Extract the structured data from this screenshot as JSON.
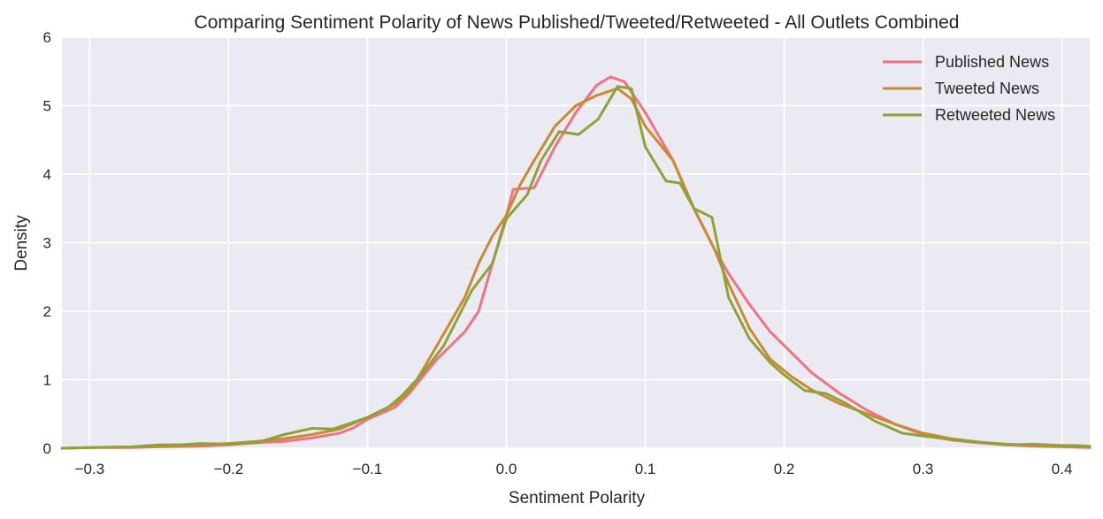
{
  "chart_data": {
    "type": "line",
    "title": "Comparing Sentiment Polarity of News Published/Tweeted/Retweeted - All Outlets Combined",
    "xlabel": "Sentiment Polarity",
    "ylabel": "Density",
    "xlim": [
      -0.32,
      0.42
    ],
    "ylim": [
      0,
      6
    ],
    "xticks": [
      -0.3,
      -0.2,
      -0.1,
      0.0,
      0.1,
      0.2,
      0.3,
      0.4
    ],
    "xtick_labels": [
      "−0.3",
      "−0.2",
      "−0.1",
      "0.0",
      "0.1",
      "0.2",
      "0.3",
      "0.4"
    ],
    "yticks": [
      0,
      1,
      2,
      3,
      4,
      5,
      6
    ],
    "ytick_labels": [
      "0",
      "1",
      "2",
      "3",
      "4",
      "5",
      "6"
    ],
    "grid": true,
    "legend_position": "top-right",
    "series": [
      {
        "name": "Published News",
        "color": "#f07283",
        "x": [
          -0.32,
          -0.3,
          -0.27,
          -0.25,
          -0.22,
          -0.2,
          -0.18,
          -0.16,
          -0.14,
          -0.12,
          -0.11,
          -0.1,
          -0.08,
          -0.07,
          -0.06,
          -0.05,
          -0.04,
          -0.03,
          -0.02,
          -0.01,
          0.0,
          0.005,
          0.02,
          0.035,
          0.05,
          0.065,
          0.075,
          0.085,
          0.1,
          0.12,
          0.135,
          0.15,
          0.16,
          0.175,
          0.19,
          0.205,
          0.22,
          0.24,
          0.26,
          0.28,
          0.3,
          0.32,
          0.34,
          0.36,
          0.38,
          0.4,
          0.42
        ],
        "y": [
          0.0,
          0.01,
          0.01,
          0.02,
          0.03,
          0.05,
          0.08,
          0.1,
          0.15,
          0.22,
          0.3,
          0.42,
          0.6,
          0.8,
          1.05,
          1.3,
          1.5,
          1.7,
          2.0,
          2.7,
          3.4,
          3.78,
          3.8,
          4.4,
          4.9,
          5.3,
          5.42,
          5.35,
          4.9,
          4.2,
          3.5,
          2.9,
          2.55,
          2.1,
          1.7,
          1.4,
          1.1,
          0.8,
          0.55,
          0.35,
          0.2,
          0.12,
          0.08,
          0.05,
          0.03,
          0.02,
          0.01
        ]
      },
      {
        "name": "Tweeted News",
        "color": "#c98a31",
        "x": [
          -0.32,
          -0.3,
          -0.27,
          -0.25,
          -0.22,
          -0.2,
          -0.18,
          -0.16,
          -0.14,
          -0.12,
          -0.1,
          -0.08,
          -0.07,
          -0.06,
          -0.05,
          -0.04,
          -0.03,
          -0.02,
          -0.01,
          0.0,
          0.01,
          0.02,
          0.035,
          0.05,
          0.065,
          0.08,
          0.09,
          0.1,
          0.12,
          0.135,
          0.15,
          0.16,
          0.175,
          0.19,
          0.205,
          0.22,
          0.24,
          0.26,
          0.28,
          0.3,
          0.32,
          0.34,
          0.36,
          0.38,
          0.4,
          0.42
        ],
        "y": [
          0.0,
          0.01,
          0.02,
          0.03,
          0.05,
          0.07,
          0.1,
          0.14,
          0.2,
          0.28,
          0.45,
          0.65,
          0.82,
          1.15,
          1.5,
          1.85,
          2.2,
          2.7,
          3.1,
          3.4,
          3.85,
          4.2,
          4.7,
          5.0,
          5.15,
          5.25,
          5.1,
          4.7,
          4.2,
          3.5,
          2.9,
          2.4,
          1.75,
          1.3,
          1.05,
          0.85,
          0.65,
          0.5,
          0.35,
          0.22,
          0.14,
          0.09,
          0.06,
          0.04,
          0.03,
          0.02
        ]
      },
      {
        "name": "Retweeted News",
        "color": "#8ea337",
        "x": [
          -0.32,
          -0.3,
          -0.27,
          -0.25,
          -0.235,
          -0.22,
          -0.2,
          -0.18,
          -0.16,
          -0.14,
          -0.125,
          -0.11,
          -0.1,
          -0.085,
          -0.075,
          -0.06,
          -0.045,
          -0.035,
          -0.025,
          -0.01,
          0.0,
          0.015,
          0.025,
          0.038,
          0.052,
          0.066,
          0.08,
          0.09,
          0.1,
          0.115,
          0.125,
          0.135,
          0.148,
          0.16,
          0.175,
          0.19,
          0.2,
          0.215,
          0.23,
          0.245,
          0.265,
          0.285,
          0.3,
          0.32,
          0.34,
          0.36,
          0.38,
          0.4,
          0.41,
          0.42
        ],
        "y": [
          0.0,
          0.01,
          0.02,
          0.05,
          0.05,
          0.07,
          0.06,
          0.08,
          0.2,
          0.29,
          0.28,
          0.38,
          0.45,
          0.6,
          0.77,
          1.1,
          1.5,
          1.9,
          2.3,
          2.7,
          3.35,
          3.7,
          4.2,
          4.62,
          4.58,
          4.8,
          5.28,
          5.25,
          4.4,
          3.9,
          3.87,
          3.5,
          3.37,
          2.2,
          1.6,
          1.25,
          1.07,
          0.84,
          0.8,
          0.65,
          0.4,
          0.22,
          0.18,
          0.13,
          0.09,
          0.05,
          0.06,
          0.04,
          0.04,
          0.03
        ]
      }
    ]
  }
}
